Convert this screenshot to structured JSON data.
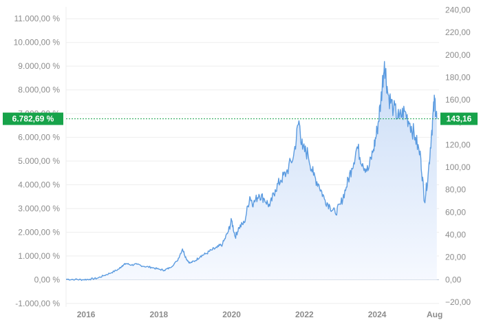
{
  "chart_data": {
    "type": "area",
    "colors": {
      "line": "#5b9be0",
      "fill_top": "#c9dcf6",
      "fill_bottom": "#f6f9ff",
      "badge": "#17a34a",
      "grid": "#eeeeee",
      "zero_line": "#b8c4d6"
    },
    "left_axis": {
      "unit": "%",
      "ticks": [
        "-1.000,00 %",
        "0,00 %",
        "1.000,00 %",
        "2.000,00 %",
        "3.000,00 %",
        "4.000,00 %",
        "5.000,00 %",
        "6.000,00 %",
        "7.000,00 %",
        "8.000,00 %",
        "9.000,00 %",
        "10.000,00 %",
        "11.000,00 %"
      ],
      "tick_values": [
        -1000,
        0,
        1000,
        2000,
        3000,
        4000,
        5000,
        6000,
        7000,
        8000,
        9000,
        10000,
        11000
      ],
      "range": [
        -1150,
        11500
      ]
    },
    "right_axis": {
      "ticks": [
        "−20,00",
        "0,00",
        "20,00",
        "40,00",
        "60,00",
        "80,00",
        "100,00",
        "120,00",
        "140,00",
        "160,00",
        "180,00",
        "200,00",
        "220,00",
        "240,00"
      ],
      "tick_values": [
        -20,
        0,
        20,
        40,
        60,
        80,
        100,
        120,
        140,
        160,
        180,
        200,
        220,
        240
      ]
    },
    "x_axis": {
      "ticks": [
        "2016",
        "2018",
        "2020",
        "2022",
        "2024",
        "Aug"
      ],
      "tick_values": [
        2016.0,
        2018.0,
        2020.0,
        2022.0,
        2024.0,
        2025.58
      ],
      "range": [
        2015.45,
        2025.7
      ]
    },
    "current_value_label_left": "6.782,69 %",
    "current_value_label_right": "143,16",
    "current_value": 6782.69,
    "series": [
      {
        "values": [
          [
            2015.45,
            20
          ],
          [
            2015.7,
            10
          ],
          [
            2015.9,
            0
          ],
          [
            2016.1,
            20
          ],
          [
            2016.3,
            60
          ],
          [
            2016.5,
            180
          ],
          [
            2016.7,
            300
          ],
          [
            2016.9,
            450
          ],
          [
            2017.0,
            600
          ],
          [
            2017.1,
            680
          ],
          [
            2017.25,
            620
          ],
          [
            2017.4,
            650
          ],
          [
            2017.6,
            560
          ],
          [
            2017.8,
            520
          ],
          [
            2018.0,
            440
          ],
          [
            2018.15,
            400
          ],
          [
            2018.3,
            500
          ],
          [
            2018.5,
            780
          ],
          [
            2018.65,
            1300
          ],
          [
            2018.75,
            900
          ],
          [
            2018.85,
            700
          ],
          [
            2019.0,
            800
          ],
          [
            2019.15,
            1000
          ],
          [
            2019.3,
            1100
          ],
          [
            2019.45,
            1250
          ],
          [
            2019.6,
            1350
          ],
          [
            2019.75,
            1500
          ],
          [
            2019.9,
            2000
          ],
          [
            2020.0,
            2500
          ],
          [
            2020.1,
            1800
          ],
          [
            2020.2,
            2200
          ],
          [
            2020.35,
            2400
          ],
          [
            2020.5,
            3500
          ],
          [
            2020.6,
            3200
          ],
          [
            2020.75,
            3600
          ],
          [
            2020.9,
            3400
          ],
          [
            2021.05,
            3100
          ],
          [
            2021.2,
            3800
          ],
          [
            2021.35,
            4200
          ],
          [
            2021.5,
            4500
          ],
          [
            2021.7,
            5200
          ],
          [
            2021.85,
            6700
          ],
          [
            2021.95,
            5500
          ],
          [
            2022.1,
            5300
          ],
          [
            2022.25,
            4400
          ],
          [
            2022.4,
            4000
          ],
          [
            2022.55,
            3400
          ],
          [
            2022.7,
            3100
          ],
          [
            2022.85,
            2800
          ],
          [
            2023.0,
            3200
          ],
          [
            2023.15,
            3900
          ],
          [
            2023.3,
            4700
          ],
          [
            2023.45,
            5600
          ],
          [
            2023.6,
            4900
          ],
          [
            2023.75,
            4600
          ],
          [
            2023.9,
            5500
          ],
          [
            2024.0,
            6300
          ],
          [
            2024.1,
            7500
          ],
          [
            2024.2,
            9200
          ],
          [
            2024.3,
            7800
          ],
          [
            2024.45,
            7200
          ],
          [
            2024.6,
            6800
          ],
          [
            2024.75,
            7100
          ],
          [
            2024.9,
            6600
          ],
          [
            2025.05,
            6000
          ],
          [
            2025.2,
            5100
          ],
          [
            2025.3,
            3300
          ],
          [
            2025.4,
            4400
          ],
          [
            2025.5,
            6300
          ],
          [
            2025.58,
            7600
          ],
          [
            2025.64,
            6782.69
          ]
        ]
      }
    ]
  }
}
